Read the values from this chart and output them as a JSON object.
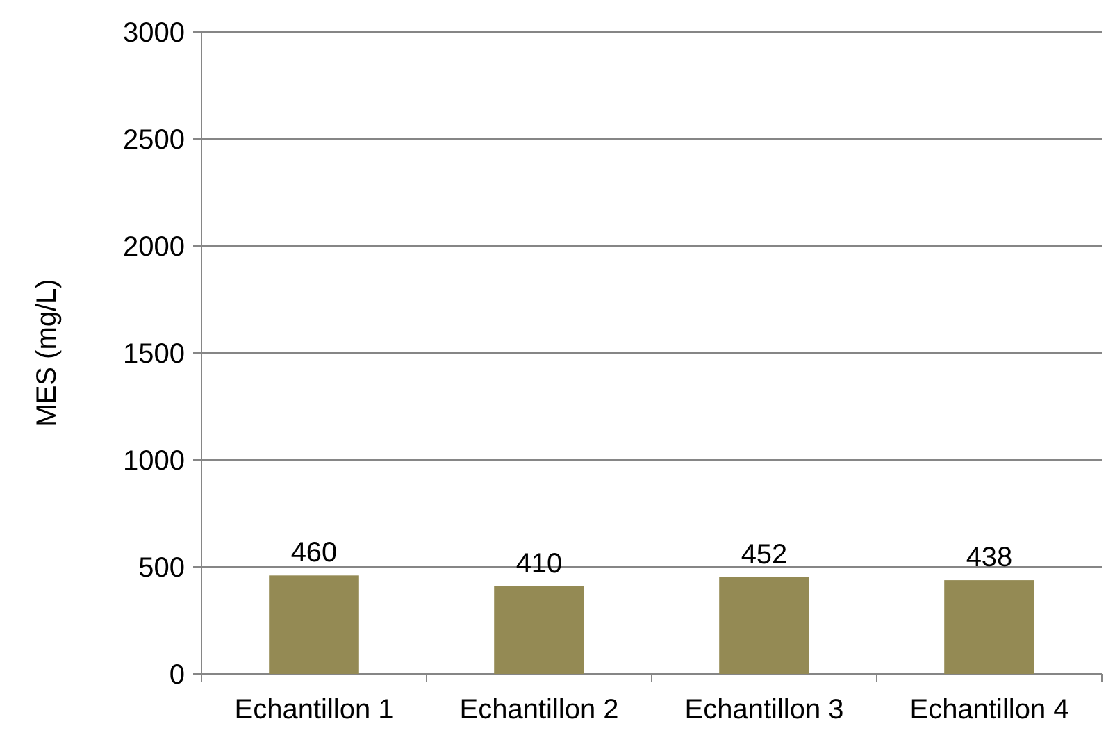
{
  "chart_data": {
    "type": "bar",
    "ylabel": "MES (mg/L)",
    "categories": [
      "Echantillon 1",
      "Echantillon 2",
      "Echantillon 3",
      "Echantillon 4"
    ],
    "values": [
      460,
      410,
      452,
      438
    ],
    "color": "#948a54",
    "ylim": [
      0,
      3000
    ],
    "yticks": [
      0,
      500,
      1000,
      1500,
      2000,
      2500,
      3000
    ],
    "grid": "y",
    "data_labels": true
  }
}
